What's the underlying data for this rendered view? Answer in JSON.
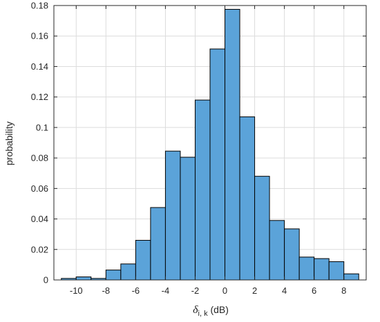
{
  "chart_data": {
    "type": "bar",
    "title": "",
    "xlabel": {
      "symbol": "δ",
      "subscript": "i, k",
      "unit": " (dB)"
    },
    "ylabel": "probability",
    "xlim": [
      -11.5,
      9.5
    ],
    "ylim": [
      0,
      0.18
    ],
    "bin_width": 1,
    "bins": [
      {
        "x0": -11,
        "x1": -10,
        "value": 0.001
      },
      {
        "x0": -10,
        "x1": -9,
        "value": 0.002
      },
      {
        "x0": -9,
        "x1": -8,
        "value": 0.001
      },
      {
        "x0": -8,
        "x1": -7,
        "value": 0.0065
      },
      {
        "x0": -7,
        "x1": -6,
        "value": 0.0105
      },
      {
        "x0": -6,
        "x1": -5,
        "value": 0.026
      },
      {
        "x0": -5,
        "x1": -4,
        "value": 0.0475
      },
      {
        "x0": -4,
        "x1": -3,
        "value": 0.0845
      },
      {
        "x0": -3,
        "x1": -2,
        "value": 0.0805
      },
      {
        "x0": -2,
        "x1": -1,
        "value": 0.118
      },
      {
        "x0": -1,
        "x1": 0,
        "value": 0.1515
      },
      {
        "x0": 0,
        "x1": 1,
        "value": 0.1775
      },
      {
        "x0": 1,
        "x1": 2,
        "value": 0.107
      },
      {
        "x0": 2,
        "x1": 3,
        "value": 0.068
      },
      {
        "x0": 3,
        "x1": 4,
        "value": 0.039
      },
      {
        "x0": 4,
        "x1": 5,
        "value": 0.0335
      },
      {
        "x0": 5,
        "x1": 6,
        "value": 0.015
      },
      {
        "x0": 6,
        "x1": 7,
        "value": 0.014
      },
      {
        "x0": 7,
        "x1": 8,
        "value": 0.012
      },
      {
        "x0": 8,
        "x1": 9,
        "value": 0.004
      }
    ],
    "x_ticks": [
      -10,
      -8,
      -6,
      -4,
      -2,
      0,
      2,
      4,
      6,
      8
    ],
    "y_ticks": [
      0,
      0.02,
      0.04,
      0.06,
      0.08,
      0.1,
      0.12,
      0.14,
      0.16,
      0.18
    ],
    "grid": true,
    "colors": {
      "bar_fill": "#5ba3d9",
      "bar_edge": "#000000",
      "grid": "#dcdcdc",
      "axis": "#262626"
    }
  }
}
